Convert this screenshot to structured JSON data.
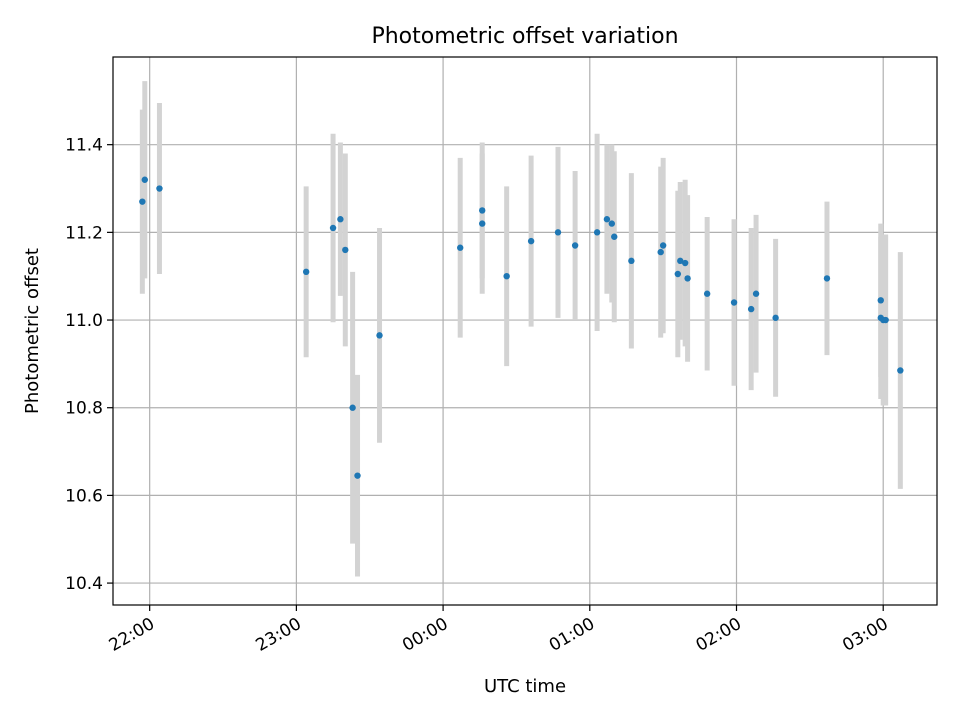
{
  "chart_data": {
    "type": "scatter",
    "title": "Photometric offset variation",
    "xlabel": "UTC time",
    "ylabel": "Photometric offset",
    "x_axis_kind": "time",
    "xlim": [
      "21:45",
      "03:22"
    ],
    "ylim": [
      10.35,
      11.6
    ],
    "x_ticks": [
      "22:00",
      "23:00",
      "00:00",
      "01:00",
      "02:00",
      "03:00"
    ],
    "y_ticks": [
      10.4,
      10.6,
      10.8,
      11.0,
      11.2,
      11.4
    ],
    "grid": true,
    "colors": {
      "points": "#1f77b4",
      "errorbars": "#d3d3d3",
      "grid": "#b0b0b0",
      "axes": "#000000"
    },
    "points": [
      {
        "x": "21:57",
        "y": 11.27,
        "err": 0.21
      },
      {
        "x": "21:58",
        "y": 11.32,
        "err": 0.225
      },
      {
        "x": "22:04",
        "y": 11.3,
        "err": 0.195
      },
      {
        "x": "23:04",
        "y": 11.11,
        "err": 0.195
      },
      {
        "x": "23:15",
        "y": 11.21,
        "err": 0.215
      },
      {
        "x": "23:18",
        "y": 11.23,
        "err": 0.175
      },
      {
        "x": "23:20",
        "y": 11.16,
        "err": 0.22
      },
      {
        "x": "23:23",
        "y": 10.8,
        "err": 0.31
      },
      {
        "x": "23:25",
        "y": 10.645,
        "err": 0.23
      },
      {
        "x": "23:34",
        "y": 10.965,
        "err": 0.245
      },
      {
        "x": "00:07",
        "y": 11.165,
        "err": 0.205
      },
      {
        "x": "00:16",
        "y": 11.25,
        "err": 0.155
      },
      {
        "x": "00:16",
        "y": 11.22,
        "err": 0.16
      },
      {
        "x": "00:26",
        "y": 11.1,
        "err": 0.205
      },
      {
        "x": "00:36",
        "y": 11.18,
        "err": 0.195
      },
      {
        "x": "00:47",
        "y": 11.2,
        "err": 0.195
      },
      {
        "x": "00:54",
        "y": 11.17,
        "err": 0.17
      },
      {
        "x": "01:03",
        "y": 11.2,
        "err": 0.225
      },
      {
        "x": "01:07",
        "y": 11.23,
        "err": 0.17
      },
      {
        "x": "01:09",
        "y": 11.22,
        "err": 0.18
      },
      {
        "x": "01:10",
        "y": 11.19,
        "err": 0.195
      },
      {
        "x": "01:17",
        "y": 11.135,
        "err": 0.2
      },
      {
        "x": "01:29",
        "y": 11.155,
        "err": 0.195
      },
      {
        "x": "01:30",
        "y": 11.17,
        "err": 0.2
      },
      {
        "x": "01:36",
        "y": 11.105,
        "err": 0.19
      },
      {
        "x": "01:37",
        "y": 11.135,
        "err": 0.18
      },
      {
        "x": "01:39",
        "y": 11.13,
        "err": 0.19
      },
      {
        "x": "01:40",
        "y": 11.095,
        "err": 0.19
      },
      {
        "x": "01:48",
        "y": 11.06,
        "err": 0.175
      },
      {
        "x": "01:59",
        "y": 11.04,
        "err": 0.19
      },
      {
        "x": "02:06",
        "y": 11.025,
        "err": 0.185
      },
      {
        "x": "02:08",
        "y": 11.06,
        "err": 0.18
      },
      {
        "x": "02:16",
        "y": 11.005,
        "err": 0.18
      },
      {
        "x": "02:37",
        "y": 11.095,
        "err": 0.175
      },
      {
        "x": "02:59",
        "y": 11.045,
        "err": 0.175
      },
      {
        "x": "02:59",
        "y": 11.005,
        "err": 0.185
      },
      {
        "x": "03:00",
        "y": 11.0,
        "err": 0.195
      },
      {
        "x": "03:01",
        "y": 11.0,
        "err": 0.195
      },
      {
        "x": "03:07",
        "y": 10.885,
        "err": 0.27
      }
    ]
  }
}
